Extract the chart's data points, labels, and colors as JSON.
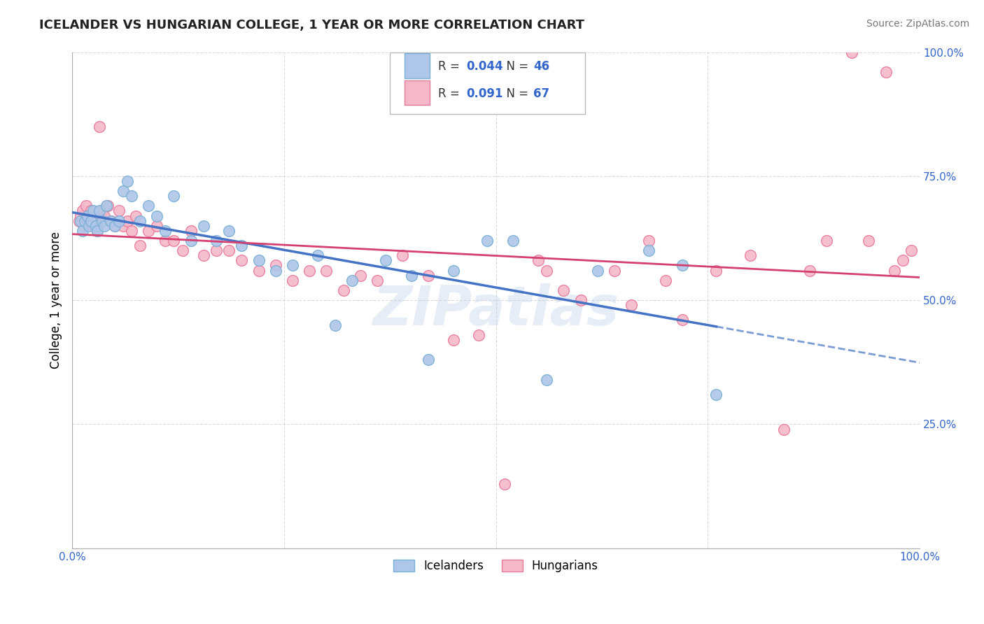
{
  "title": "ICELANDER VS HUNGARIAN COLLEGE, 1 YEAR OR MORE CORRELATION CHART",
  "source_text": "Source: ZipAtlas.com",
  "ylabel": "College, 1 year or more",
  "xlim": [
    0.0,
    1.0
  ],
  "ylim": [
    0.0,
    1.0
  ],
  "grid_color": "#cccccc",
  "watermark": "ZIPatlas",
  "icelanders_color": "#aec6e8",
  "icelanders_edge_color": "#7aafd4",
  "hungarians_color": "#f4b8c8",
  "hungarians_edge_color": "#e87a9a",
  "R_ice": 0.044,
  "N_ice": 46,
  "R_hun": 0.091,
  "N_hun": 67,
  "legend_color": "#3366cc",
  "ice_line_color": "#4472c4",
  "hun_line_color": "#d44070",
  "icelanders_x": [
    0.01,
    0.012,
    0.015,
    0.018,
    0.02,
    0.022,
    0.025,
    0.028,
    0.03,
    0.032,
    0.035,
    0.038,
    0.04,
    0.045,
    0.05,
    0.055,
    0.06,
    0.065,
    0.07,
    0.08,
    0.09,
    0.1,
    0.11,
    0.12,
    0.14,
    0.155,
    0.17,
    0.185,
    0.2,
    0.22,
    0.24,
    0.26,
    0.29,
    0.31,
    0.33,
    0.37,
    0.4,
    0.42,
    0.45,
    0.49,
    0.52,
    0.56,
    0.62,
    0.68,
    0.72,
    0.76
  ],
  "icelanders_y": [
    0.66,
    0.64,
    0.66,
    0.67,
    0.65,
    0.66,
    0.68,
    0.65,
    0.64,
    0.68,
    0.66,
    0.65,
    0.69,
    0.66,
    0.65,
    0.66,
    0.72,
    0.74,
    0.71,
    0.66,
    0.69,
    0.67,
    0.64,
    0.71,
    0.62,
    0.65,
    0.62,
    0.64,
    0.61,
    0.58,
    0.56,
    0.57,
    0.59,
    0.45,
    0.54,
    0.58,
    0.55,
    0.38,
    0.56,
    0.62,
    0.62,
    0.34,
    0.56,
    0.6,
    0.57,
    0.31
  ],
  "hungarians_x": [
    0.008,
    0.01,
    0.012,
    0.014,
    0.016,
    0.018,
    0.02,
    0.022,
    0.024,
    0.026,
    0.028,
    0.03,
    0.032,
    0.035,
    0.038,
    0.042,
    0.046,
    0.05,
    0.055,
    0.06,
    0.065,
    0.07,
    0.075,
    0.08,
    0.09,
    0.1,
    0.11,
    0.12,
    0.13,
    0.14,
    0.155,
    0.17,
    0.185,
    0.2,
    0.22,
    0.24,
    0.26,
    0.28,
    0.3,
    0.32,
    0.34,
    0.36,
    0.39,
    0.42,
    0.45,
    0.48,
    0.51,
    0.55,
    0.56,
    0.58,
    0.6,
    0.64,
    0.66,
    0.68,
    0.7,
    0.72,
    0.76,
    0.8,
    0.84,
    0.87,
    0.89,
    0.92,
    0.94,
    0.96,
    0.97,
    0.98,
    0.99
  ],
  "hungarians_y": [
    0.66,
    0.67,
    0.68,
    0.65,
    0.69,
    0.66,
    0.67,
    0.68,
    0.66,
    0.65,
    0.67,
    0.64,
    0.85,
    0.68,
    0.67,
    0.69,
    0.66,
    0.65,
    0.68,
    0.65,
    0.66,
    0.64,
    0.67,
    0.61,
    0.64,
    0.65,
    0.62,
    0.62,
    0.6,
    0.64,
    0.59,
    0.6,
    0.6,
    0.58,
    0.56,
    0.57,
    0.54,
    0.56,
    0.56,
    0.52,
    0.55,
    0.54,
    0.59,
    0.55,
    0.42,
    0.43,
    0.13,
    0.58,
    0.56,
    0.52,
    0.5,
    0.56,
    0.49,
    0.62,
    0.54,
    0.46,
    0.56,
    0.59,
    0.24,
    0.56,
    0.62,
    1.0,
    0.62,
    0.96,
    0.56,
    0.58,
    0.6
  ]
}
